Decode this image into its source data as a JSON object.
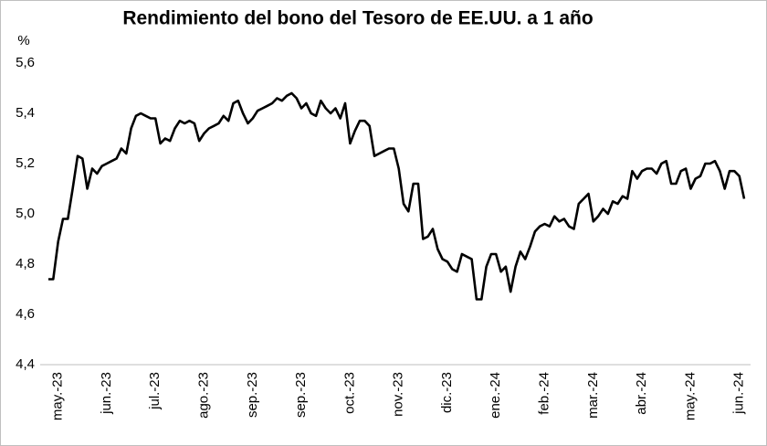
{
  "chart_data": {
    "type": "line",
    "title": "Rendimiento del bono del Tesoro de EE.UU. a 1 año",
    "y_label": "%",
    "categories": [
      null,
      null,
      "may.-23",
      null,
      null,
      null,
      null,
      null,
      null,
      null,
      null,
      null,
      "jun.-23",
      null,
      null,
      null,
      null,
      null,
      null,
      null,
      null,
      null,
      "jul.-23",
      null,
      null,
      null,
      null,
      null,
      null,
      null,
      null,
      null,
      "ago.-23",
      null,
      null,
      null,
      null,
      null,
      null,
      null,
      null,
      null,
      "sep.-23",
      null,
      null,
      null,
      null,
      null,
      null,
      null,
      null,
      null,
      "sep.-23",
      null,
      null,
      null,
      null,
      null,
      null,
      null,
      null,
      null,
      "oct.-23",
      null,
      null,
      null,
      null,
      null,
      null,
      null,
      null,
      null,
      "nov.-23",
      null,
      null,
      null,
      null,
      null,
      null,
      null,
      null,
      null,
      "dic.-23",
      null,
      null,
      null,
      null,
      null,
      null,
      null,
      null,
      null,
      "ene.-24",
      null,
      null,
      null,
      null,
      null,
      null,
      null,
      null,
      null,
      "feb.-24",
      null,
      null,
      null,
      null,
      null,
      null,
      null,
      null,
      null,
      "mar.-24",
      null,
      null,
      null,
      null,
      null,
      null,
      null,
      null,
      null,
      "abr.-24",
      null,
      null,
      null,
      null,
      null,
      null,
      null,
      null,
      null,
      "may.-24",
      null,
      null,
      null,
      null,
      null,
      null,
      null,
      null,
      null,
      "jun.-24",
      null
    ],
    "series": [
      {
        "color": "#000000",
        "values": [
          4.74,
          4.74,
          4.89,
          4.98,
          4.98,
          5.1,
          5.23,
          5.22,
          5.1,
          5.18,
          5.16,
          5.19,
          5.2,
          5.21,
          5.22,
          5.26,
          5.24,
          5.34,
          5.39,
          5.4,
          5.39,
          5.38,
          5.38,
          5.28,
          5.3,
          5.29,
          5.34,
          5.37,
          5.36,
          5.37,
          5.36,
          5.29,
          5.32,
          5.34,
          5.35,
          5.36,
          5.39,
          5.37,
          5.44,
          5.45,
          5.4,
          5.36,
          5.38,
          5.41,
          5.42,
          5.43,
          5.44,
          5.46,
          5.45,
          5.47,
          5.48,
          5.46,
          5.42,
          5.44,
          5.4,
          5.39,
          5.45,
          5.42,
          5.4,
          5.42,
          5.38,
          5.44,
          5.28,
          5.33,
          5.37,
          5.37,
          5.35,
          5.23,
          5.24,
          5.25,
          5.26,
          5.26,
          5.18,
          5.04,
          5.01,
          5.12,
          5.12,
          4.9,
          4.91,
          4.94,
          4.86,
          4.82,
          4.81,
          4.78,
          4.77,
          4.84,
          4.83,
          4.82,
          4.66,
          4.66,
          4.79,
          4.84,
          4.84,
          4.77,
          4.79,
          4.69,
          4.79,
          4.85,
          4.82,
          4.87,
          4.93,
          4.95,
          4.96,
          4.95,
          4.99,
          4.97,
          4.98,
          4.95,
          4.94,
          5.04,
          5.06,
          5.08,
          4.97,
          4.99,
          5.02,
          5.0,
          5.05,
          5.04,
          5.07,
          5.06,
          5.17,
          5.14,
          5.17,
          5.18,
          5.18,
          5.16,
          5.2,
          5.21,
          5.12,
          5.12,
          5.17,
          5.18,
          5.1,
          5.14,
          5.15,
          5.2,
          5.2,
          5.21,
          5.17,
          5.1,
          5.17,
          5.17,
          5.15,
          5.06
        ]
      }
    ],
    "ylim": [
      4.4,
      5.6
    ],
    "yticks": [
      {
        "value": 4.4,
        "label": "4,4"
      },
      {
        "value": 4.6,
        "label": "4,6"
      },
      {
        "value": 4.8,
        "label": "4,8"
      },
      {
        "value": 5.0,
        "label": "5,0"
      },
      {
        "value": 5.2,
        "label": "5,2"
      },
      {
        "value": 5.4,
        "label": "5,4"
      },
      {
        "value": 5.6,
        "label": "5,6"
      }
    ]
  }
}
